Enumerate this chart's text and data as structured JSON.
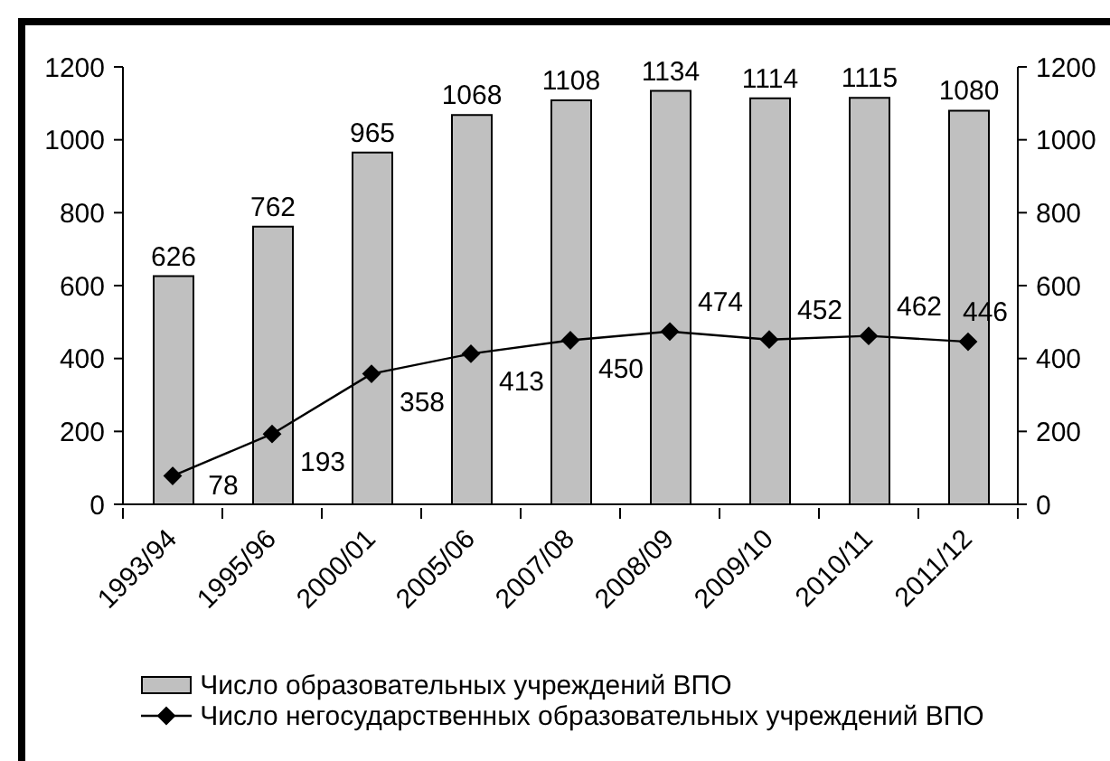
{
  "chart_data": {
    "type": "bar",
    "categories": [
      "1993/94",
      "1995/96",
      "2000/01",
      "2005/06",
      "2007/08",
      "2008/09",
      "2009/10",
      "2010/11",
      "2011/12"
    ],
    "series": [
      {
        "name": "Число образовательных учреждений ВПО",
        "color": "#c0c0c0",
        "values": [
          626,
          762,
          965,
          1068,
          1108,
          1134,
          1114,
          1115,
          1080
        ]
      },
      {
        "name": "Число негосударственных образовательных учреждений ВПО",
        "type": "line",
        "color": "#000000",
        "values": [
          78,
          193,
          358,
          413,
          450,
          474,
          452,
          462,
          446
        ]
      }
    ],
    "ylim": [
      0,
      1200
    ],
    "yticks": [
      0,
      200,
      400,
      600,
      800,
      1000,
      1200
    ],
    "y2lim": [
      0,
      1200
    ],
    "y2ticks": [
      0,
      200,
      400,
      600,
      800,
      1000,
      1200
    ],
    "marker": "diamond",
    "legend": "bottom",
    "data_labels": true
  }
}
